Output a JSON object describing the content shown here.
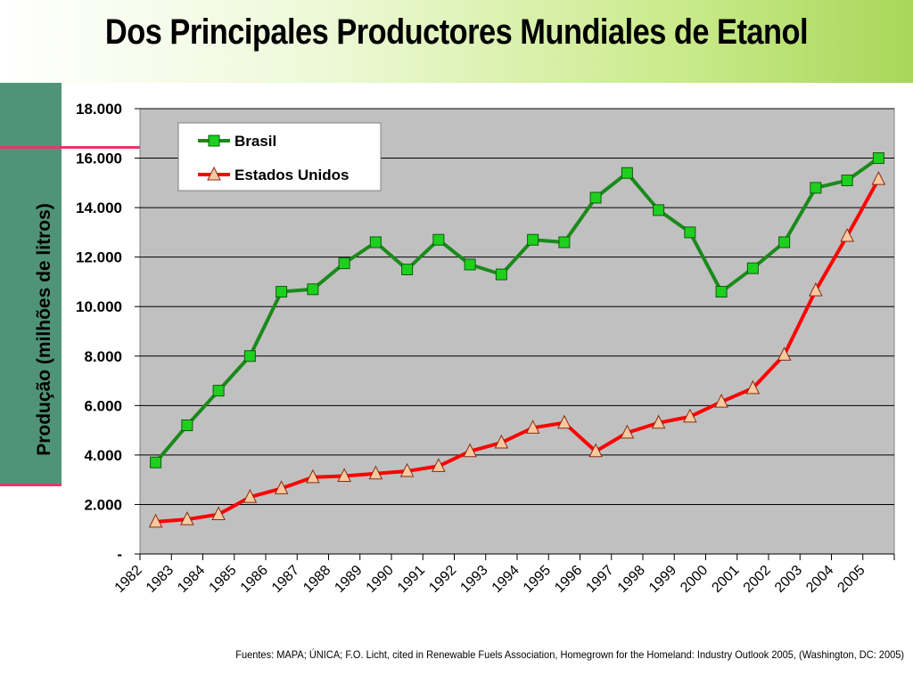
{
  "title": "Dos Principales Productores Mundiales de Etanol",
  "footer": "Fuentes: MAPA; ÚNICA; F.O. Licht, cited in Renewable Fuels Association, Homegrown for the Homeland: Industry Outlook 2005, (Washington, DC: 2005)",
  "colors": {
    "banner_end": "#a8d65a",
    "sidebar": "#4f9479",
    "accent_line": "#e8356b",
    "plot_bg": "#c0c0c0",
    "brasil_line": "#1a8a1a",
    "brasil_marker": "#1ed01e",
    "usa_line": "#ff0000",
    "usa_marker": "#f7c9a0"
  },
  "chart_data": {
    "type": "line",
    "ylabel": "Produção (milhões de litros)",
    "ylim": [
      0,
      18000
    ],
    "ytick_values": [
      0,
      2000,
      4000,
      6000,
      8000,
      10000,
      12000,
      14000,
      16000,
      18000
    ],
    "ytick_labels": [
      "-",
      "2.000",
      "4.000",
      "6.000",
      "8.000",
      "10.000",
      "12.000",
      "14.000",
      "16.000",
      "18.000"
    ],
    "categories": [
      "1982",
      "1983",
      "1984",
      "1985",
      "1986",
      "1987",
      "1988",
      "1989",
      "1990",
      "1991",
      "1992",
      "1993",
      "1994",
      "1995",
      "1996",
      "1997",
      "1998",
      "1999",
      "2000",
      "2001",
      "2002",
      "2003",
      "2004",
      "2005"
    ],
    "grid": true,
    "legend_position": "top-left",
    "series": [
      {
        "name": "Brasil",
        "marker": "square",
        "color_key": "brasil",
        "values": [
          3700,
          5200,
          6600,
          8000,
          10600,
          10700,
          11750,
          12600,
          11500,
          12700,
          11700,
          11300,
          12700,
          12600,
          14400,
          15400,
          13900,
          13000,
          10600,
          11550,
          12600,
          14800,
          15100,
          16000
        ]
      },
      {
        "name": "Estados Unidos",
        "marker": "triangle",
        "color_key": "usa",
        "values": [
          1300,
          1400,
          1600,
          2300,
          2650,
          3100,
          3150,
          3250,
          3350,
          3550,
          4150,
          4500,
          5100,
          5300,
          4150,
          4900,
          5300,
          5550,
          6150,
          6700,
          8050,
          10650,
          12850,
          15150
        ]
      }
    ]
  }
}
